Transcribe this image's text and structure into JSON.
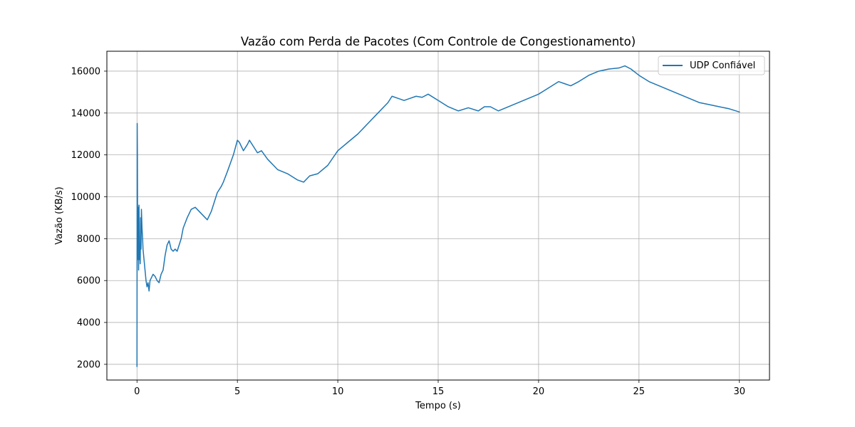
{
  "chart_data": {
    "type": "line",
    "title": "Vazão com Perda de Pacotes (Com Controle de Congestionamento)",
    "xlabel": "Tempo (s)",
    "ylabel": "Vazão (KB/s)",
    "xlim": [
      -1.5,
      31.5
    ],
    "ylim": [
      1250,
      16950
    ],
    "xticks": [
      0,
      5,
      10,
      15,
      20,
      25,
      30
    ],
    "xtick_labels": [
      "0",
      "5",
      "10",
      "15",
      "20",
      "25",
      "30"
    ],
    "yticks": [
      2000,
      4000,
      6000,
      8000,
      10000,
      12000,
      14000,
      16000
    ],
    "ytick_labels": [
      "2000",
      "4000",
      "6000",
      "8000",
      "10000",
      "12000",
      "14000",
      "16000"
    ],
    "grid": true,
    "legend_position": "top-right",
    "series": [
      {
        "name": "UDP Confiável",
        "color": "#1f77b4",
        "x": [
          0.0,
          0.01,
          0.02,
          0.03,
          0.04,
          0.06,
          0.08,
          0.1,
          0.12,
          0.14,
          0.16,
          0.18,
          0.2,
          0.22,
          0.25,
          0.28,
          0.3,
          0.35,
          0.4,
          0.45,
          0.5,
          0.55,
          0.6,
          0.65,
          0.7,
          0.8,
          0.9,
          1.0,
          1.1,
          1.2,
          1.3,
          1.4,
          1.5,
          1.6,
          1.7,
          1.8,
          1.9,
          2.0,
          2.2,
          2.3,
          2.5,
          2.7,
          2.9,
          3.0,
          3.2,
          3.4,
          3.5,
          3.7,
          4.0,
          4.2,
          4.3,
          4.5,
          4.8,
          5.0,
          5.1,
          5.3,
          5.5,
          5.6,
          5.8,
          6.0,
          6.2,
          6.5,
          7.0,
          7.5,
          8.0,
          8.3,
          8.6,
          9.0,
          9.5,
          10.0,
          10.5,
          11.0,
          11.5,
          12.0,
          12.5,
          12.7,
          13.0,
          13.3,
          13.6,
          13.9,
          14.2,
          14.5,
          15.0,
          15.5,
          16.0,
          16.5,
          17.0,
          17.3,
          17.6,
          18.0,
          18.5,
          19.0,
          19.5,
          20.0,
          20.5,
          21.0,
          21.3,
          21.6,
          22.0,
          22.5,
          23.0,
          23.5,
          24.0,
          24.3,
          24.6,
          25.0,
          25.5,
          26.0,
          26.5,
          27.0,
          27.5,
          28.0,
          28.5,
          29.0,
          29.5,
          30.0
        ],
        "y": [
          1900,
          13500,
          12000,
          8500,
          7000,
          9500,
          6500,
          9600,
          7000,
          7500,
          6800,
          9000,
          7500,
          9400,
          8500,
          8000,
          7500,
          7000,
          6500,
          6000,
          5700,
          5900,
          5500,
          6000,
          6100,
          6300,
          6200,
          6000,
          5900,
          6300,
          6500,
          7200,
          7700,
          7900,
          7500,
          7400,
          7500,
          7400,
          8000,
          8500,
          9000,
          9400,
          9500,
          9400,
          9200,
          9000,
          8900,
          9300,
          10200,
          10500,
          10700,
          11200,
          12000,
          12700,
          12600,
          12200,
          12500,
          12700,
          12400,
          12100,
          12200,
          11800,
          11300,
          11100,
          10800,
          10700,
          11000,
          11100,
          11500,
          12200,
          12600,
          13000,
          13500,
          14000,
          14500,
          14800,
          14700,
          14600,
          14700,
          14800,
          14750,
          14900,
          14600,
          14300,
          14100,
          14250,
          14100,
          14300,
          14300,
          14100,
          14300,
          14500,
          14700,
          14900,
          15200,
          15500,
          15400,
          15300,
          15500,
          15800,
          16000,
          16100,
          16150,
          16250,
          16100,
          15800,
          15500,
          15300,
          15100,
          14900,
          14700,
          14500,
          14400,
          14300,
          14200,
          14050
        ]
      }
    ]
  }
}
